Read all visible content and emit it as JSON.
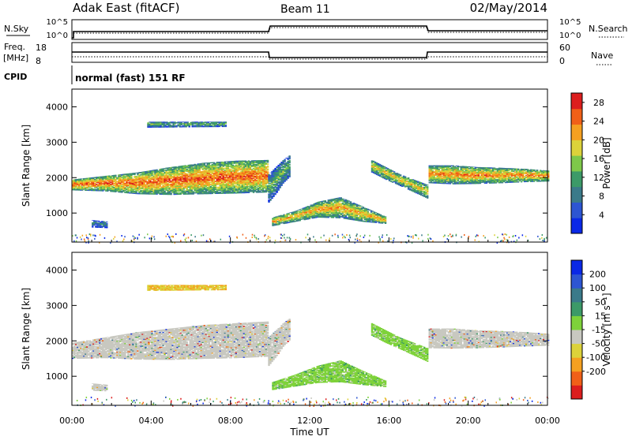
{
  "header": {
    "radar": "Adak East (fitACF)",
    "beam": "Beam 11",
    "date": "02/May/2014"
  },
  "top_panels": {
    "nsky_label": "N.Sky",
    "nsearch_label": "N.Search",
    "freq_label": "Freq.",
    "freq_unit": "[MHz]",
    "nave_label": "Nave",
    "cpid_label": "CPID",
    "cpid_text": "normal (fast) 151 RF",
    "noise_ticks_left": [
      "10^5",
      "10^0"
    ],
    "noise_ticks_right": [
      "10^5",
      "10^0"
    ],
    "freq_ticks": [
      "18",
      "8"
    ],
    "nave_ticks": [
      "60",
      "0"
    ]
  },
  "chart_data": [
    {
      "type": "heatmap",
      "name": "power",
      "ylabel": "Slant Range [km]",
      "xlabel": "",
      "xlim": [
        0,
        24
      ],
      "ylim": [
        180,
        4500
      ],
      "yticks": [
        1000,
        2000,
        3000,
        4000
      ],
      "colorbar": {
        "label": "Power [dB]",
        "ticks": [
          4,
          8,
          12,
          16,
          20,
          24,
          28
        ],
        "range": [
          0,
          30
        ],
        "colors": [
          "#0a28e6",
          "#2d55d2",
          "#3a7a8a",
          "#3c9a68",
          "#7ec84a",
          "#dcd23a",
          "#f5a020",
          "#f06018",
          "#dc1e1e"
        ]
      },
      "bands": [
        {
          "t0": 0.0,
          "t1": 9.9,
          "r_low": [
            1650,
            1620,
            1540,
            1520,
            1540,
            1560,
            1590
          ],
          "r_high": [
            1950,
            2050,
            2150,
            2300,
            2420,
            2480,
            2500
          ],
          "peak_db": 26
        },
        {
          "t0": 9.9,
          "t1": 11.0,
          "r_low": [
            1300,
            1550,
            1850,
            2050
          ],
          "r_high": [
            2100,
            2300,
            2500,
            2650
          ],
          "peak_db": 14
        },
        {
          "t0": 10.1,
          "t1": 15.8,
          "r_low": [
            640,
            760,
            880,
            860,
            760,
            700
          ],
          "r_high": [
            880,
            1060,
            1320,
            1450,
            1180,
            900
          ],
          "peak_db": 22
        },
        {
          "t0": 15.1,
          "t1": 17.9,
          "r_low": [
            2150,
            1950,
            1780,
            1600,
            1420
          ],
          "r_high": [
            2500,
            2300,
            2100,
            1950,
            1800
          ],
          "peak_db": 20
        },
        {
          "t0": 18.0,
          "t1": 24.0,
          "r_low": [
            1850,
            1820,
            1830,
            1850,
            1880,
            1900
          ],
          "r_high": [
            2350,
            2350,
            2300,
            2280,
            2250,
            2200
          ],
          "peak_db": 24
        },
        {
          "t0": 1.0,
          "t1": 1.8,
          "r_low": [
            600,
            580
          ],
          "r_high": [
            800,
            760
          ],
          "peak_db": 10
        },
        {
          "t0": 3.8,
          "t1": 7.8,
          "r_low": [
            3420,
            3440
          ],
          "r_high": [
            3580,
            3580
          ],
          "peak_db": 14
        }
      ]
    },
    {
      "type": "heatmap",
      "name": "velocity",
      "ylabel": "Slant Range [km]",
      "xlabel": "Time UT",
      "xlim": [
        0,
        24
      ],
      "ylim": [
        180,
        4500
      ],
      "yticks": [
        1000,
        2000,
        3000,
        4000
      ],
      "xticks": [
        "00:00",
        "04:00",
        "08:00",
        "12:00",
        "16:00",
        "20:00",
        "00:00"
      ],
      "colorbar": {
        "label": "Velocity [m s⁻¹]",
        "ticks": [
          200,
          100,
          50,
          15,
          -15,
          -50,
          -100,
          -200
        ],
        "colors": [
          "#0a28e6",
          "#2d55d2",
          "#3a7a8a",
          "#3c9a68",
          "#7ed23a",
          "#c8c8c0",
          "#dcd23a",
          "#f5a020",
          "#f06018",
          "#dc1e1e"
        ]
      },
      "bands": [
        {
          "t0": 0.0,
          "t1": 9.9,
          "r_low": [
            1500,
            1520,
            1480,
            1470,
            1500,
            1520,
            1560
          ],
          "r_high": [
            1950,
            2100,
            2250,
            2350,
            2450,
            2500,
            2550
          ],
          "class": "ground"
        },
        {
          "t0": 9.9,
          "t1": 11.0,
          "r_low": [
            1300,
            1550,
            1850,
            2050
          ],
          "r_high": [
            2100,
            2300,
            2500,
            2650
          ],
          "class": "ground"
        },
        {
          "t0": 10.1,
          "t1": 15.8,
          "r_low": [
            620,
            720,
            820,
            840,
            760,
            700
          ],
          "r_high": [
            840,
            1050,
            1300,
            1450,
            1150,
            880
          ],
          "class": "flow"
        },
        {
          "t0": 15.1,
          "t1": 17.9,
          "r_low": [
            2150,
            1950,
            1780,
            1600,
            1420
          ],
          "r_high": [
            2500,
            2300,
            2100,
            1950,
            1800
          ],
          "class": "flow"
        },
        {
          "t0": 18.0,
          "t1": 24.0,
          "r_low": [
            1800,
            1790,
            1800,
            1820,
            1850,
            1870
          ],
          "r_high": [
            2350,
            2350,
            2300,
            2280,
            2250,
            2200
          ],
          "class": "ground"
        },
        {
          "t0": 1.0,
          "t1": 1.8,
          "r_low": [
            600,
            580
          ],
          "r_high": [
            800,
            760
          ],
          "class": "ground"
        },
        {
          "t0": 3.8,
          "t1": 7.8,
          "r_low": [
            3420,
            3440
          ],
          "r_high": [
            3580,
            3580
          ],
          "class": "edge"
        }
      ]
    }
  ]
}
